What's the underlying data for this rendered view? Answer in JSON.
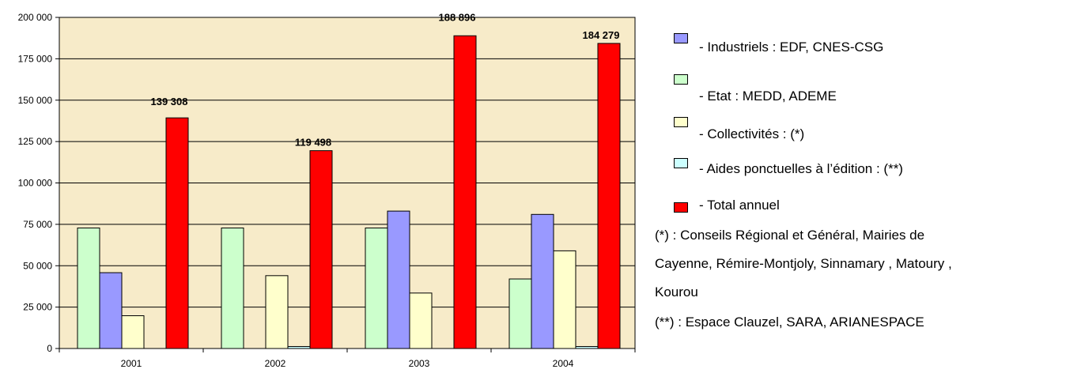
{
  "chart_data": {
    "type": "bar",
    "categories": [
      "2001",
      "2002",
      "2003",
      "2004"
    ],
    "series": [
      {
        "name": "- Etat : MEDD, ADEME",
        "color": "#ccffcc",
        "values": [
          72800,
          72800,
          72800,
          42000
        ]
      },
      {
        "name": "- Industriels : EDF, CNES-CSG",
        "color": "#9999ff",
        "values": [
          45800,
          0,
          83000,
          81000
        ]
      },
      {
        "name": "- Collectivités : (*)",
        "color": "#ffffcc",
        "values": [
          19800,
          44000,
          33500,
          59000
        ]
      },
      {
        "name": "- Aides ponctuelles à l’édition : (**)",
        "color": "#ccffff",
        "values": [
          0,
          1200,
          0,
          1200
        ]
      },
      {
        "name": "- Total annuel",
        "color": "#ff0000",
        "values": [
          139308,
          119498,
          188896,
          184279
        ]
      }
    ],
    "data_labels": {
      "- Total annuel": [
        "139 308",
        "119 498",
        "188 896",
        "184 279"
      ]
    },
    "y_ticks": [
      "0",
      "25 000",
      "50 000",
      "75 000",
      "100 000",
      "125 000",
      "150 000",
      "175 000",
      "200 000"
    ],
    "ylim": [
      0,
      200000
    ],
    "grid": true,
    "plot_background": "#f7ebc9",
    "title": "",
    "xlabel": "",
    "ylabel": ""
  },
  "legend": {
    "items": [
      {
        "label": "- Industriels : EDF, CNES-CSG",
        "color": "#9999ff"
      },
      {
        "label": "- Etat : MEDD, ADEME",
        "color": "#ccffcc"
      },
      {
        "label": "- Collectivités : (*)",
        "color": "#ffffcc"
      },
      {
        "label": "- Aides ponctuelles à l’édition : (**)",
        "color": "#ccffff"
      },
      {
        "label": "- Total annuel",
        "color": "#ff0000"
      }
    ],
    "notes": [
      "(*) : Conseils Régional et Général, Mairies de",
      "Cayenne, Rémire-Montjoly, Sinnamary , Matoury ,",
      "Kourou",
      "(**) : Espace Clauzel, SARA, ARIANESPACE"
    ]
  }
}
